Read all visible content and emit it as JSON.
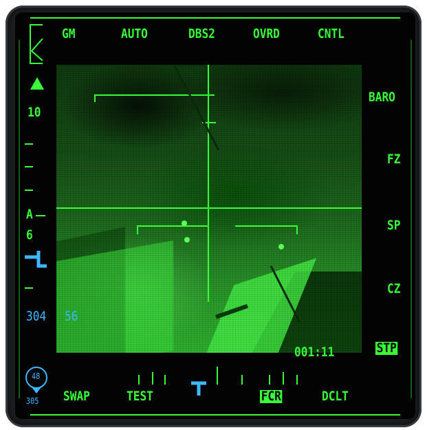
{
  "top_buttons": [
    "GM",
    "AUTO",
    "DBS2",
    "OVRD",
    "CNTL"
  ],
  "right_buttons": [
    "BARO",
    "FZ",
    "SP",
    "CZ",
    "STP"
  ],
  "bottom_buttons": [
    "SWAP",
    "TEST",
    "FCR",
    "DCLT"
  ],
  "left_scale": {
    "range": "10",
    "azimuth_label": "A",
    "azimuth_value": "6",
    "bottom_left": "304",
    "bottom_right": "56"
  },
  "timer": "001:11",
  "heading_bug": {
    "value": "48",
    "subvalue": "305"
  },
  "selected": {
    "right": "STP",
    "bottom": "FCR"
  },
  "colors": {
    "symbology": "#39ff39",
    "cyan": "#3fb7ff",
    "bezel": "#1e2124"
  }
}
